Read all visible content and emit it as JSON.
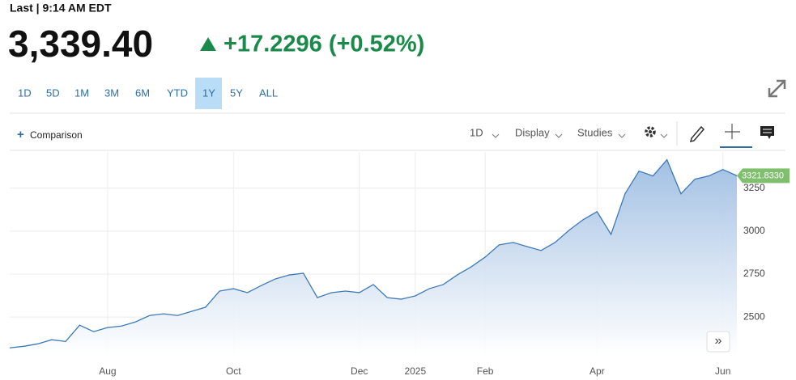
{
  "header": {
    "status": "Last | 9:14 AM EDT",
    "price": "3,339.40",
    "change": "+17.2296 (+0.52%)"
  },
  "range_buttons": [
    "1D",
    "5D",
    "1M",
    "3M",
    "6M",
    "YTD",
    "1Y",
    "5Y",
    "ALL"
  ],
  "toolbar": {
    "comparison": "Comparison",
    "interval": "1D",
    "display": "Display",
    "studies": "Studies"
  },
  "chart_data": {
    "type": "line",
    "categories": [
      null,
      null,
      null,
      null,
      null,
      null,
      null,
      "Aug",
      null,
      null,
      null,
      null,
      null,
      null,
      null,
      null,
      "Oct",
      null,
      null,
      null,
      null,
      null,
      null,
      null,
      null,
      "Dec",
      null,
      null,
      null,
      "2025",
      null,
      null,
      null,
      null,
      "Feb",
      null,
      null,
      null,
      null,
      null,
      null,
      null,
      "Apr",
      null,
      null,
      null,
      null,
      null,
      null,
      null,
      null,
      "Jun",
      null
    ],
    "values": [
      2321,
      2330,
      2344,
      2368,
      2358,
      2453,
      2415,
      2439,
      2448,
      2472,
      2509,
      2519,
      2509,
      2533,
      2557,
      2651,
      2665,
      2642,
      2684,
      2722,
      2745,
      2755,
      2613,
      2642,
      2651,
      2642,
      2689,
      2613,
      2604,
      2623,
      2665,
      2689,
      2745,
      2792,
      2849,
      2920,
      2934,
      2910,
      2887,
      2934,
      3005,
      3066,
      3113,
      2981,
      3217,
      3349,
      3321,
      3415,
      3217,
      3302,
      3321,
      3358,
      3322
    ],
    "color": "#3d79b8",
    "ylim": [
      2275,
      3460
    ],
    "yticks": [
      2500,
      2750,
      3000,
      3250
    ],
    "grid": true,
    "last_price": {
      "value": 3321.833,
      "label": "3321.8330"
    }
  }
}
